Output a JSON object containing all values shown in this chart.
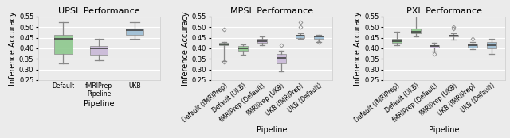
{
  "upsl": {
    "title": "UPSL Performance",
    "categories": [
      "Default",
      "fMRIPrep\nPipeline",
      "UKB"
    ],
    "boxes": [
      {
        "color": "#8dc88d",
        "whislo": 0.33,
        "q1": 0.375,
        "med": 0.445,
        "q3": 0.465,
        "whishi": 0.525,
        "fliers": []
      },
      {
        "color": "#c9b8d8",
        "whislo": 0.345,
        "q1": 0.37,
        "med": 0.4,
        "q3": 0.41,
        "whishi": 0.445,
        "fliers": []
      },
      {
        "color": "#9bbdd4",
        "whislo": 0.445,
        "q1": 0.465,
        "med": 0.485,
        "q3": 0.495,
        "whishi": 0.525,
        "fliers": []
      }
    ],
    "ylim": [
      0.25,
      0.55
    ],
    "yticks": [
      0.25,
      0.3,
      0.35,
      0.4,
      0.45,
      0.5,
      0.55
    ],
    "ylabel": "Inference Accuracy",
    "xlabel": "Pipeline",
    "xrotation": 0,
    "xha": "center"
  },
  "mpsl": {
    "title": "MPSL Performance",
    "categories": [
      "Default (fMRIPrep)",
      "Default (UKB)",
      "fMRIPrep (Default)",
      "fMRIPrep (UKB)",
      "UKB (fMRIPrep)",
      "UKB (Default)"
    ],
    "boxes": [
      {
        "color": "#8dc88d",
        "whislo": 0.34,
        "q1": 0.415,
        "med": 0.42,
        "q3": 0.425,
        "whishi": 0.43,
        "fliers": [
          0.49,
          0.335
        ]
      },
      {
        "color": "#8dc88d",
        "whislo": 0.37,
        "q1": 0.39,
        "med": 0.4,
        "q3": 0.41,
        "whishi": 0.42,
        "fliers": []
      },
      {
        "color": "#c9b8d8",
        "whislo": 0.415,
        "q1": 0.425,
        "med": 0.432,
        "q3": 0.445,
        "whishi": 0.455,
        "fliers": []
      },
      {
        "color": "#c9b8d8",
        "whislo": 0.29,
        "q1": 0.33,
        "med": 0.355,
        "q3": 0.375,
        "whishi": 0.39,
        "fliers": [
          0.415
        ]
      },
      {
        "color": "#9bbdd4",
        "whislo": 0.445,
        "q1": 0.45,
        "med": 0.46,
        "q3": 0.465,
        "whishi": 0.47,
        "fliers": [
          0.5,
          0.525
        ]
      },
      {
        "color": "#9bbdd4",
        "whislo": 0.43,
        "q1": 0.445,
        "med": 0.455,
        "q3": 0.46,
        "whishi": 0.465,
        "fliers": [
          0.43
        ]
      }
    ],
    "ylim": [
      0.25,
      0.55
    ],
    "yticks": [
      0.25,
      0.3,
      0.35,
      0.4,
      0.45,
      0.5,
      0.55
    ],
    "ylabel": "Inference Accuracy",
    "xlabel": "Pipeline",
    "xrotation": 40,
    "xha": "right"
  },
  "pxl": {
    "title": "PXL Performance",
    "categories": [
      "Default (fMRIPrep)",
      "Default (UKB)",
      "fMRIPrep (Default)",
      "fMRIPrep (UKB)",
      "UKB (fMRIPrep)",
      "UKB (Default)"
    ],
    "boxes": [
      {
        "color": "#8dc88d",
        "whislo": 0.415,
        "q1": 0.425,
        "med": 0.435,
        "q3": 0.445,
        "whishi": 0.48,
        "fliers": []
      },
      {
        "color": "#8dc88d",
        "whislo": 0.455,
        "q1": 0.47,
        "med": 0.48,
        "q3": 0.495,
        "whishi": 0.555,
        "fliers": []
      },
      {
        "color": "#c9b8d8",
        "whislo": 0.385,
        "q1": 0.403,
        "med": 0.41,
        "q3": 0.415,
        "whishi": 0.425,
        "fliers": [
          0.375
        ]
      },
      {
        "color": "#c9b8d8",
        "whislo": 0.44,
        "q1": 0.455,
        "med": 0.46,
        "q3": 0.465,
        "whishi": 0.47,
        "fliers": [
          0.495,
          0.5
        ]
      },
      {
        "color": "#9bbdd4",
        "whislo": 0.395,
        "q1": 0.405,
        "med": 0.415,
        "q3": 0.42,
        "whishi": 0.43,
        "fliers": [
          0.445
        ]
      },
      {
        "color": "#9bbdd4",
        "whislo": 0.375,
        "q1": 0.4,
        "med": 0.415,
        "q3": 0.43,
        "whishi": 0.445,
        "fliers": []
      }
    ],
    "ylim": [
      0.25,
      0.55
    ],
    "yticks": [
      0.25,
      0.3,
      0.35,
      0.4,
      0.45,
      0.5,
      0.55
    ],
    "ylabel": "Inference Accuracy",
    "xlabel": "Pipeline",
    "xrotation": 40,
    "xha": "right"
  },
  "background_color": "#ebebeb",
  "grid_color": "#ffffff",
  "whisker_color": "#888888",
  "median_color": "#444444",
  "box_edge_color": "#999999"
}
